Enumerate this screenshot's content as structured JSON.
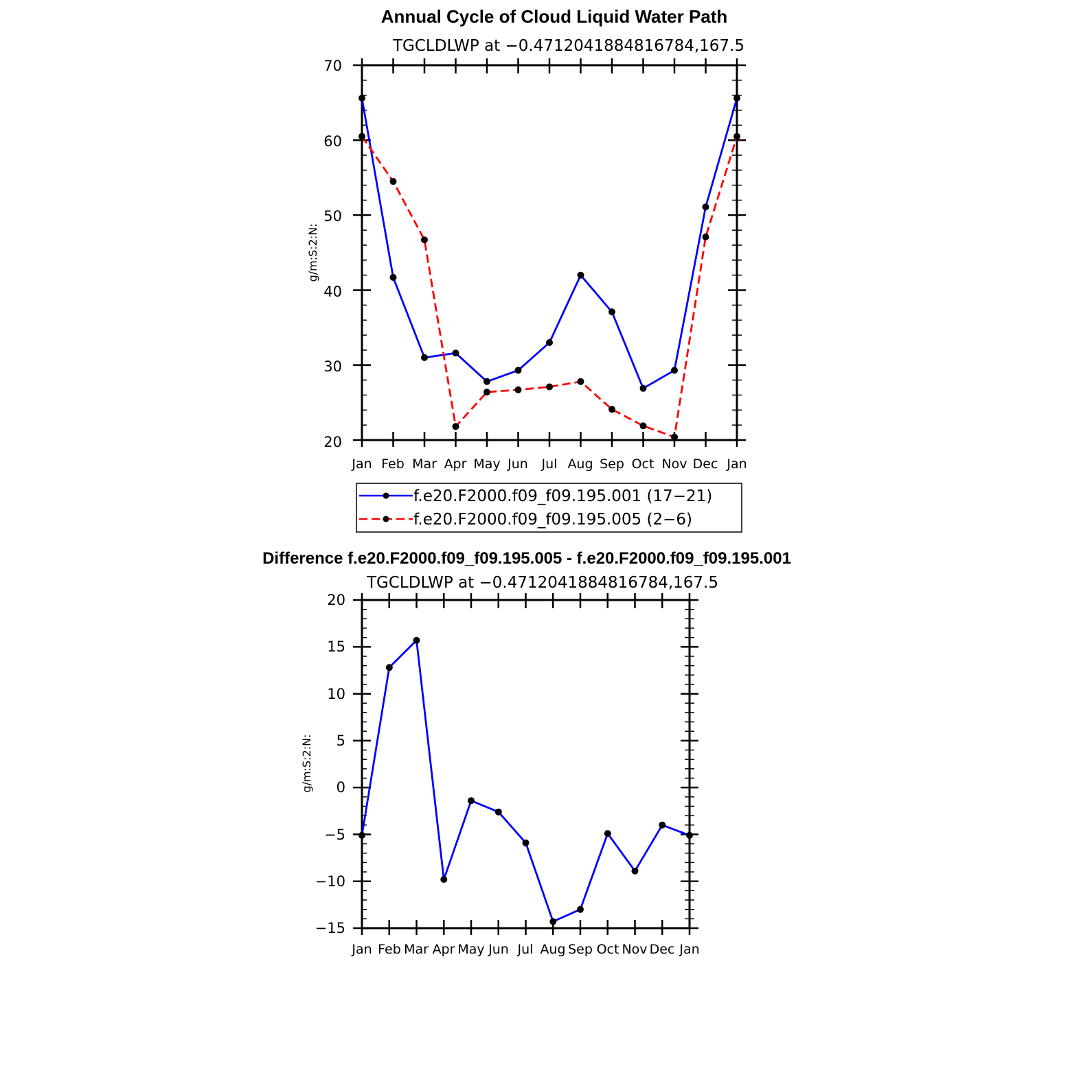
{
  "chart_data": [
    {
      "type": "line",
      "title": "Annual Cycle of Cloud Liquid Water Path",
      "subtitle": "TGCLDLWP  at  −0.4712041884816784,167.5",
      "ylabel": "g/m:S:2:N:",
      "xlabel": "",
      "categories": [
        "Jan",
        "Feb",
        "Mar",
        "Apr",
        "May",
        "Jun",
        "Jul",
        "Aug",
        "Sep",
        "Oct",
        "Nov",
        "Dec",
        "Jan"
      ],
      "ylim": [
        20,
        70
      ],
      "yticks": [
        "70",
        "60",
        "50",
        "40",
        "30",
        "20"
      ],
      "grid": false,
      "legend": "bottom",
      "series": [
        {
          "name": "f.e20.F2000.f09_f09.195.001 (17−21)",
          "color": "#0000ff",
          "dash": "solid",
          "values": [
            65.6,
            41.7,
            31.0,
            31.6,
            27.8,
            29.3,
            33.0,
            42.0,
            37.1,
            26.9,
            29.3,
            51.1,
            65.6
          ]
        },
        {
          "name": "f.e20.F2000.f09_f09.195.005 (2−6)",
          "color": "#ff0000",
          "dash": "dashed",
          "values": [
            60.5,
            54.5,
            46.7,
            21.8,
            26.4,
            26.7,
            27.1,
            27.8,
            24.1,
            21.9,
            20.4,
            47.1,
            60.5
          ]
        }
      ]
    },
    {
      "type": "line",
      "title": "Difference f.e20.F2000.f09_f09.195.005 - f.e20.F2000.f09_f09.195.001",
      "subtitle": "TGCLDLWP  at  −0.4712041884816784,167.5",
      "ylabel": "g/m:S:2:N:",
      "xlabel": "",
      "categories": [
        "Jan",
        "Feb",
        "Mar",
        "Apr",
        "May",
        "Jun",
        "Jul",
        "Aug",
        "Sep",
        "Oct",
        "Nov",
        "Dec",
        "Jan"
      ],
      "ylim": [
        -15,
        20
      ],
      "yticks": [
        "20",
        "15",
        "10",
        "5",
        "0",
        "−5",
        "−10",
        "−15"
      ],
      "grid": false,
      "series": [
        {
          "name": "",
          "color": "#0000ff",
          "dash": "solid",
          "values": [
            -5.1,
            12.8,
            15.7,
            -9.8,
            -1.4,
            -2.6,
            -5.9,
            -14.3,
            -13.0,
            -4.9,
            -8.9,
            -4.0,
            -5.1
          ]
        }
      ]
    }
  ]
}
